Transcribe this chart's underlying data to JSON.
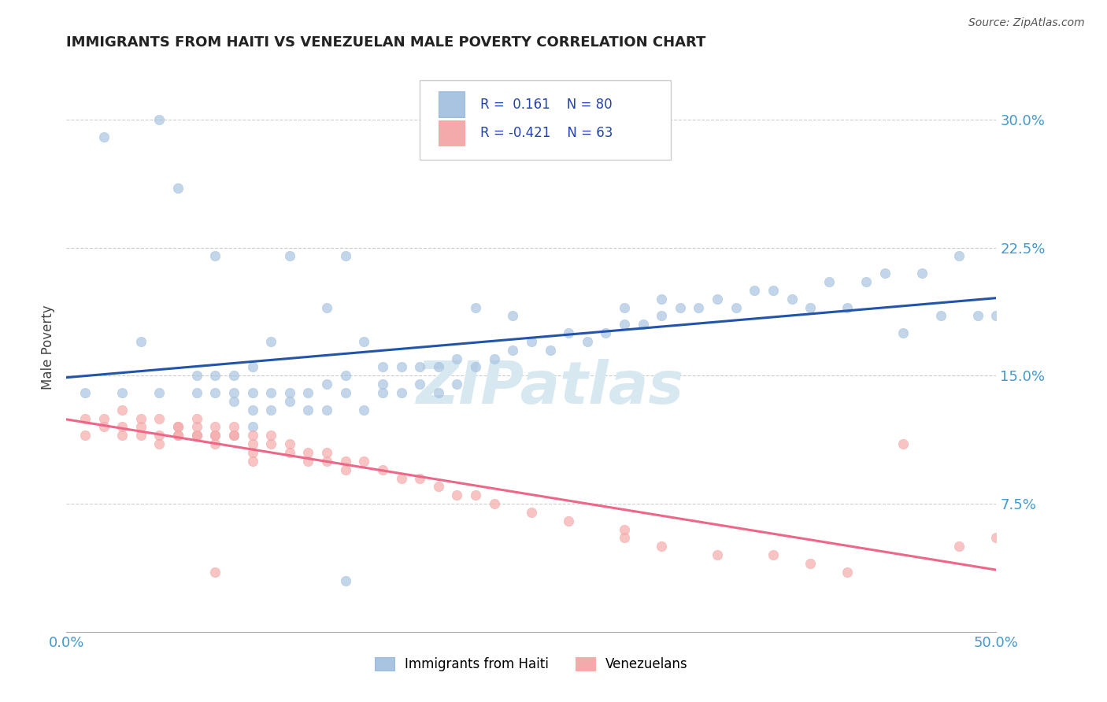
{
  "title": "IMMIGRANTS FROM HAITI VS VENEZUELAN MALE POVERTY CORRELATION CHART",
  "source": "Source: ZipAtlas.com",
  "ylabel": "Male Poverty",
  "xlim": [
    0.0,
    0.5
  ],
  "ylim": [
    0.0,
    0.333
  ],
  "legend1_label": "Immigrants from Haiti",
  "legend2_label": "Venezuelans",
  "R1": 0.161,
  "N1": 80,
  "R2": -0.421,
  "N2": 63,
  "blue_color": "#A8C4E0",
  "pink_color": "#F4AAAA",
  "blue_line_color": "#2255AA",
  "pink_line_color": "#EE6688",
  "tick_color": "#4499CC",
  "watermark_color": "#D8E8F0",
  "haiti_x": [
    0.01,
    0.02,
    0.03,
    0.04,
    0.05,
    0.05,
    0.06,
    0.07,
    0.07,
    0.08,
    0.08,
    0.08,
    0.09,
    0.09,
    0.09,
    0.1,
    0.1,
    0.1,
    0.11,
    0.11,
    0.11,
    0.12,
    0.12,
    0.12,
    0.13,
    0.13,
    0.14,
    0.14,
    0.14,
    0.15,
    0.15,
    0.15,
    0.16,
    0.16,
    0.17,
    0.17,
    0.17,
    0.18,
    0.18,
    0.19,
    0.19,
    0.2,
    0.2,
    0.21,
    0.21,
    0.22,
    0.22,
    0.23,
    0.24,
    0.25,
    0.26,
    0.27,
    0.28,
    0.29,
    0.3,
    0.3,
    0.31,
    0.32,
    0.33,
    0.34,
    0.35,
    0.36,
    0.37,
    0.38,
    0.39,
    0.4,
    0.41,
    0.42,
    0.43,
    0.44,
    0.45,
    0.46,
    0.47,
    0.48,
    0.49,
    0.5,
    0.32,
    0.24,
    0.15,
    0.1
  ],
  "haiti_y": [
    0.14,
    0.29,
    0.14,
    0.17,
    0.3,
    0.14,
    0.26,
    0.14,
    0.15,
    0.14,
    0.15,
    0.22,
    0.135,
    0.14,
    0.15,
    0.13,
    0.14,
    0.155,
    0.13,
    0.14,
    0.17,
    0.135,
    0.14,
    0.22,
    0.13,
    0.14,
    0.13,
    0.145,
    0.19,
    0.14,
    0.15,
    0.22,
    0.13,
    0.17,
    0.14,
    0.145,
    0.155,
    0.14,
    0.155,
    0.145,
    0.155,
    0.14,
    0.155,
    0.145,
    0.16,
    0.155,
    0.19,
    0.16,
    0.165,
    0.17,
    0.165,
    0.175,
    0.17,
    0.175,
    0.18,
    0.19,
    0.18,
    0.185,
    0.19,
    0.19,
    0.195,
    0.19,
    0.2,
    0.2,
    0.195,
    0.19,
    0.205,
    0.19,
    0.205,
    0.21,
    0.175,
    0.21,
    0.185,
    0.22,
    0.185,
    0.185,
    0.195,
    0.185,
    0.03,
    0.12
  ],
  "venezuela_x": [
    0.01,
    0.01,
    0.02,
    0.02,
    0.03,
    0.03,
    0.03,
    0.04,
    0.04,
    0.04,
    0.05,
    0.05,
    0.05,
    0.06,
    0.06,
    0.06,
    0.06,
    0.07,
    0.07,
    0.07,
    0.07,
    0.08,
    0.08,
    0.08,
    0.08,
    0.09,
    0.09,
    0.09,
    0.1,
    0.1,
    0.1,
    0.11,
    0.11,
    0.12,
    0.12,
    0.13,
    0.13,
    0.14,
    0.14,
    0.15,
    0.15,
    0.16,
    0.17,
    0.18,
    0.19,
    0.2,
    0.21,
    0.22,
    0.23,
    0.25,
    0.27,
    0.3,
    0.3,
    0.32,
    0.35,
    0.38,
    0.4,
    0.42,
    0.45,
    0.48,
    0.5,
    0.08,
    0.1
  ],
  "venezuela_y": [
    0.125,
    0.115,
    0.12,
    0.125,
    0.13,
    0.12,
    0.115,
    0.115,
    0.12,
    0.125,
    0.115,
    0.125,
    0.11,
    0.12,
    0.115,
    0.12,
    0.115,
    0.115,
    0.12,
    0.115,
    0.125,
    0.115,
    0.12,
    0.115,
    0.11,
    0.115,
    0.12,
    0.115,
    0.11,
    0.115,
    0.105,
    0.11,
    0.115,
    0.105,
    0.11,
    0.105,
    0.1,
    0.1,
    0.105,
    0.1,
    0.095,
    0.1,
    0.095,
    0.09,
    0.09,
    0.085,
    0.08,
    0.08,
    0.075,
    0.07,
    0.065,
    0.06,
    0.055,
    0.05,
    0.045,
    0.045,
    0.04,
    0.035,
    0.11,
    0.05,
    0.055,
    0.035,
    0.1
  ]
}
